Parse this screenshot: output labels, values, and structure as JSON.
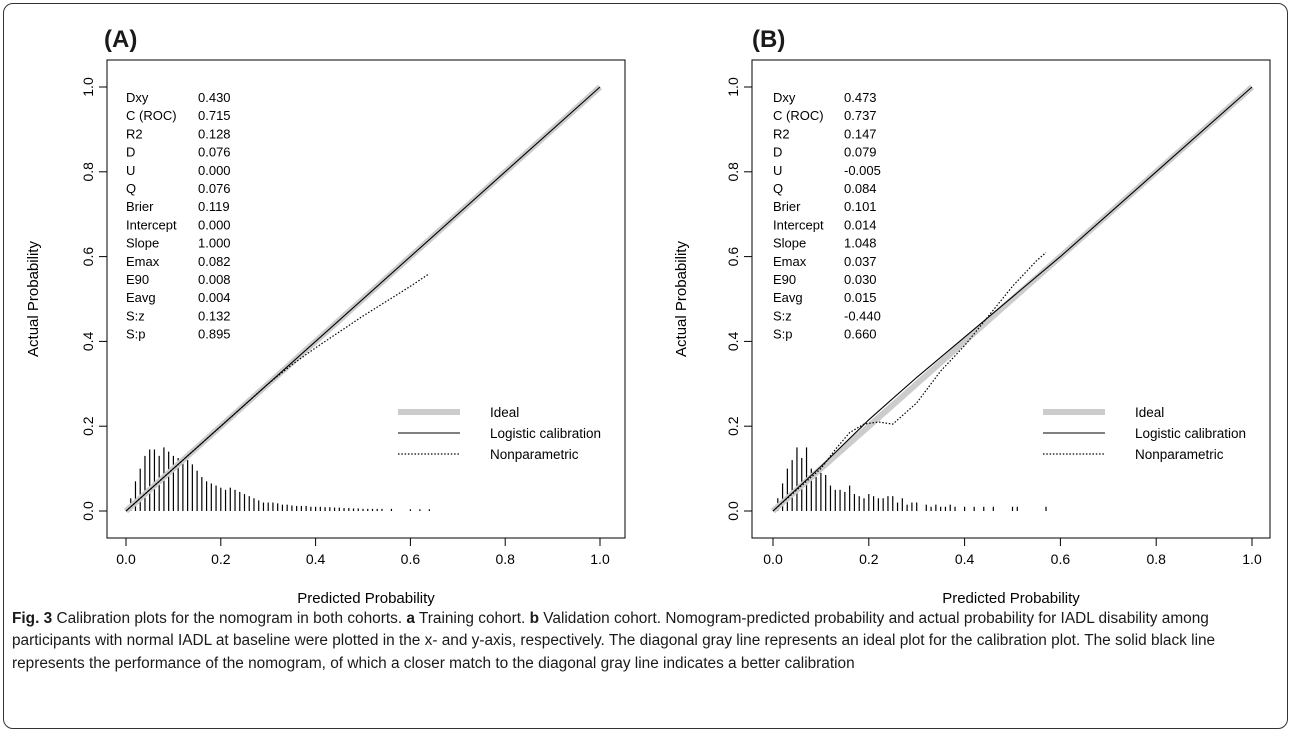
{
  "chart_data": [
    {
      "type": "line",
      "panel_label": "(A)",
      "xlabel": "Predicted Probability",
      "ylabel": "Actual Probability",
      "xlim": [
        0,
        1
      ],
      "ylim": [
        0,
        1
      ],
      "xticks": [
        "0.0",
        "0.2",
        "0.4",
        "0.6",
        "0.8",
        "1.0"
      ],
      "yticks": [
        "0.0",
        "0.2",
        "0.4",
        "0.6",
        "0.8",
        "1.0"
      ],
      "grid": false,
      "legend_position": "bottom-right",
      "stats": [
        [
          "Dxy",
          "0.430"
        ],
        [
          "C (ROC)",
          "0.715"
        ],
        [
          "R2",
          "0.128"
        ],
        [
          "D",
          "0.076"
        ],
        [
          "U",
          "0.000"
        ],
        [
          "Q",
          "0.076"
        ],
        [
          "Brier",
          "0.119"
        ],
        [
          "Intercept",
          "0.000"
        ],
        [
          "Slope",
          "1.000"
        ],
        [
          "Emax",
          "0.082"
        ],
        [
          "E90",
          "0.008"
        ],
        [
          "Eavg",
          "0.004"
        ],
        [
          "S:z",
          "0.132"
        ],
        [
          "S:p",
          "0.895"
        ]
      ],
      "series": [
        {
          "name": "Ideal",
          "style": "thick-gray",
          "x": [
            0,
            1
          ],
          "y": [
            0,
            1
          ]
        },
        {
          "name": "Logistic calibration",
          "style": "solid",
          "x": [
            0,
            1
          ],
          "y": [
            0,
            1
          ]
        },
        {
          "name": "Nonparametric",
          "style": "dotted",
          "x": [
            0.0,
            0.1,
            0.2,
            0.3,
            0.35,
            0.4,
            0.5,
            0.6,
            0.64
          ],
          "y": [
            0.0,
            0.1,
            0.2,
            0.3,
            0.345,
            0.385,
            0.46,
            0.53,
            0.56
          ]
        }
      ],
      "histogram": {
        "x": [
          0.01,
          0.02,
          0.03,
          0.04,
          0.05,
          0.06,
          0.07,
          0.08,
          0.09,
          0.1,
          0.11,
          0.12,
          0.13,
          0.14,
          0.15,
          0.16,
          0.17,
          0.18,
          0.19,
          0.2,
          0.21,
          0.22,
          0.23,
          0.24,
          0.25,
          0.26,
          0.27,
          0.28,
          0.29,
          0.3,
          0.31,
          0.32,
          0.33,
          0.34,
          0.35,
          0.36,
          0.37,
          0.38,
          0.39,
          0.4,
          0.41,
          0.42,
          0.43,
          0.44,
          0.45,
          0.46,
          0.47,
          0.48,
          0.49,
          0.5,
          0.51,
          0.52,
          0.53,
          0.54,
          0.56,
          0.6,
          0.62,
          0.64
        ],
        "y": [
          0.03,
          0.07,
          0.1,
          0.13,
          0.145,
          0.145,
          0.13,
          0.15,
          0.14,
          0.13,
          0.125,
          0.12,
          0.12,
          0.11,
          0.095,
          0.08,
          0.07,
          0.065,
          0.06,
          0.055,
          0.05,
          0.055,
          0.05,
          0.045,
          0.04,
          0.035,
          0.03,
          0.025,
          0.02,
          0.02,
          0.02,
          0.018,
          0.015,
          0.015,
          0.013,
          0.012,
          0.012,
          0.012,
          0.01,
          0.01,
          0.01,
          0.009,
          0.009,
          0.008,
          0.008,
          0.007,
          0.007,
          0.006,
          0.006,
          0.005,
          0.005,
          0.005,
          0.005,
          0.005,
          0.005,
          0.004,
          0.004,
          0.004
        ]
      }
    },
    {
      "type": "line",
      "panel_label": "(B)",
      "xlabel": "Predicted Probability",
      "ylabel": "Actual Probability",
      "xlim": [
        0,
        1
      ],
      "ylim": [
        0,
        1
      ],
      "xticks": [
        "0.0",
        "0.2",
        "0.4",
        "0.6",
        "0.8",
        "1.0"
      ],
      "yticks": [
        "0.0",
        "0.2",
        "0.4",
        "0.6",
        "0.8",
        "1.0"
      ],
      "grid": false,
      "legend_position": "bottom-right",
      "stats": [
        [
          "Dxy",
          "0.473"
        ],
        [
          "C (ROC)",
          "0.737"
        ],
        [
          "R2",
          "0.147"
        ],
        [
          "D",
          "0.079"
        ],
        [
          "U",
          "-0.005"
        ],
        [
          "Q",
          "0.084"
        ],
        [
          "Brier",
          "0.101"
        ],
        [
          "Intercept",
          "0.014"
        ],
        [
          "Slope",
          "1.048"
        ],
        [
          "Emax",
          "0.037"
        ],
        [
          "E90",
          "0.030"
        ],
        [
          "Eavg",
          "0.015"
        ],
        [
          "S:z",
          "-0.440"
        ],
        [
          "S:p",
          "0.660"
        ]
      ],
      "series": [
        {
          "name": "Ideal",
          "style": "thick-gray",
          "x": [
            0,
            1
          ],
          "y": [
            0,
            1
          ]
        },
        {
          "name": "Logistic calibration",
          "style": "solid",
          "x": [
            0.0,
            0.1,
            0.2,
            0.3,
            0.4,
            0.5,
            0.6,
            0.8,
            1.0
          ],
          "y": [
            0.0,
            0.105,
            0.215,
            0.315,
            0.41,
            0.505,
            0.6,
            0.8,
            1.0
          ]
        },
        {
          "name": "Nonparametric",
          "style": "dotted",
          "x": [
            0.0,
            0.05,
            0.1,
            0.13,
            0.16,
            0.19,
            0.22,
            0.25,
            0.3,
            0.35,
            0.4,
            0.45,
            0.5,
            0.55,
            0.57
          ],
          "y": [
            0.0,
            0.05,
            0.1,
            0.145,
            0.185,
            0.205,
            0.21,
            0.205,
            0.255,
            0.33,
            0.39,
            0.46,
            0.53,
            0.59,
            0.61
          ]
        }
      ],
      "histogram": {
        "x": [
          0.01,
          0.02,
          0.03,
          0.04,
          0.05,
          0.06,
          0.07,
          0.08,
          0.09,
          0.1,
          0.11,
          0.12,
          0.13,
          0.14,
          0.15,
          0.16,
          0.17,
          0.18,
          0.19,
          0.2,
          0.21,
          0.22,
          0.23,
          0.24,
          0.25,
          0.26,
          0.27,
          0.28,
          0.29,
          0.3,
          0.32,
          0.33,
          0.34,
          0.35,
          0.36,
          0.37,
          0.38,
          0.4,
          0.42,
          0.44,
          0.46,
          0.5,
          0.51,
          0.57
        ],
        "y": [
          0.03,
          0.065,
          0.1,
          0.12,
          0.15,
          0.125,
          0.15,
          0.1,
          0.08,
          0.09,
          0.085,
          0.06,
          0.05,
          0.05,
          0.045,
          0.06,
          0.04,
          0.035,
          0.03,
          0.04,
          0.035,
          0.03,
          0.03,
          0.035,
          0.035,
          0.02,
          0.03,
          0.015,
          0.02,
          0.02,
          0.015,
          0.01,
          0.015,
          0.01,
          0.01,
          0.015,
          0.01,
          0.01,
          0.01,
          0.01,
          0.01,
          0.01,
          0.01,
          0.01
        ]
      }
    }
  ],
  "caption": {
    "figure_label": "Fig. 3",
    "intro": " Calibration plots for the nomogram in both cohorts. ",
    "a_label": "a",
    "a_text": " Training cohort. ",
    "b_label": "b",
    "b_text": " Validation cohort. Nomogram-predicted probability and actual probability for IADL disability among participants with normal IADL at baseline were plotted in the x- and y-axis, respectively. The diagonal gray line represents an ideal plot for the calibration plot. The solid black line represents the performance of the nomogram, of which a closer match to the diagonal gray line indicates a better calibration"
  },
  "colors": {
    "ideal": "#cccccc",
    "ink": "#000000",
    "fig_label": "#1a1a1a",
    "panel_letter": "#1f5fa8"
  }
}
